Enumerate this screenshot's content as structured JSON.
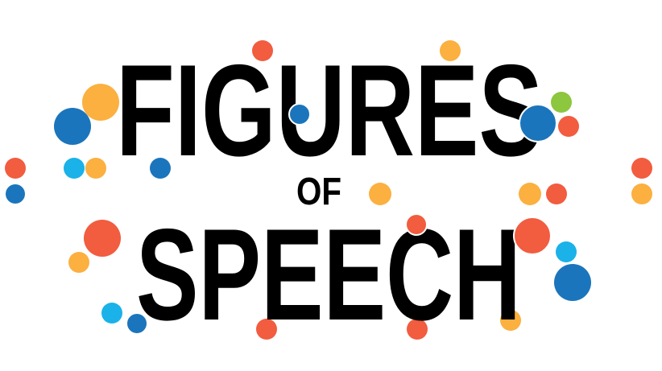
{
  "title": {
    "line1": "FIGURES",
    "line2": "OF",
    "line3": "SPEECH"
  },
  "palette": {
    "background": "#ffffff",
    "text": "#000000",
    "dot_red": "#f25c3f",
    "dot_orange": "#fbb040",
    "dot_blue": "#1b75bc",
    "dot_cyan": "#1ab2e8",
    "dot_green": "#8dc63f"
  }
}
